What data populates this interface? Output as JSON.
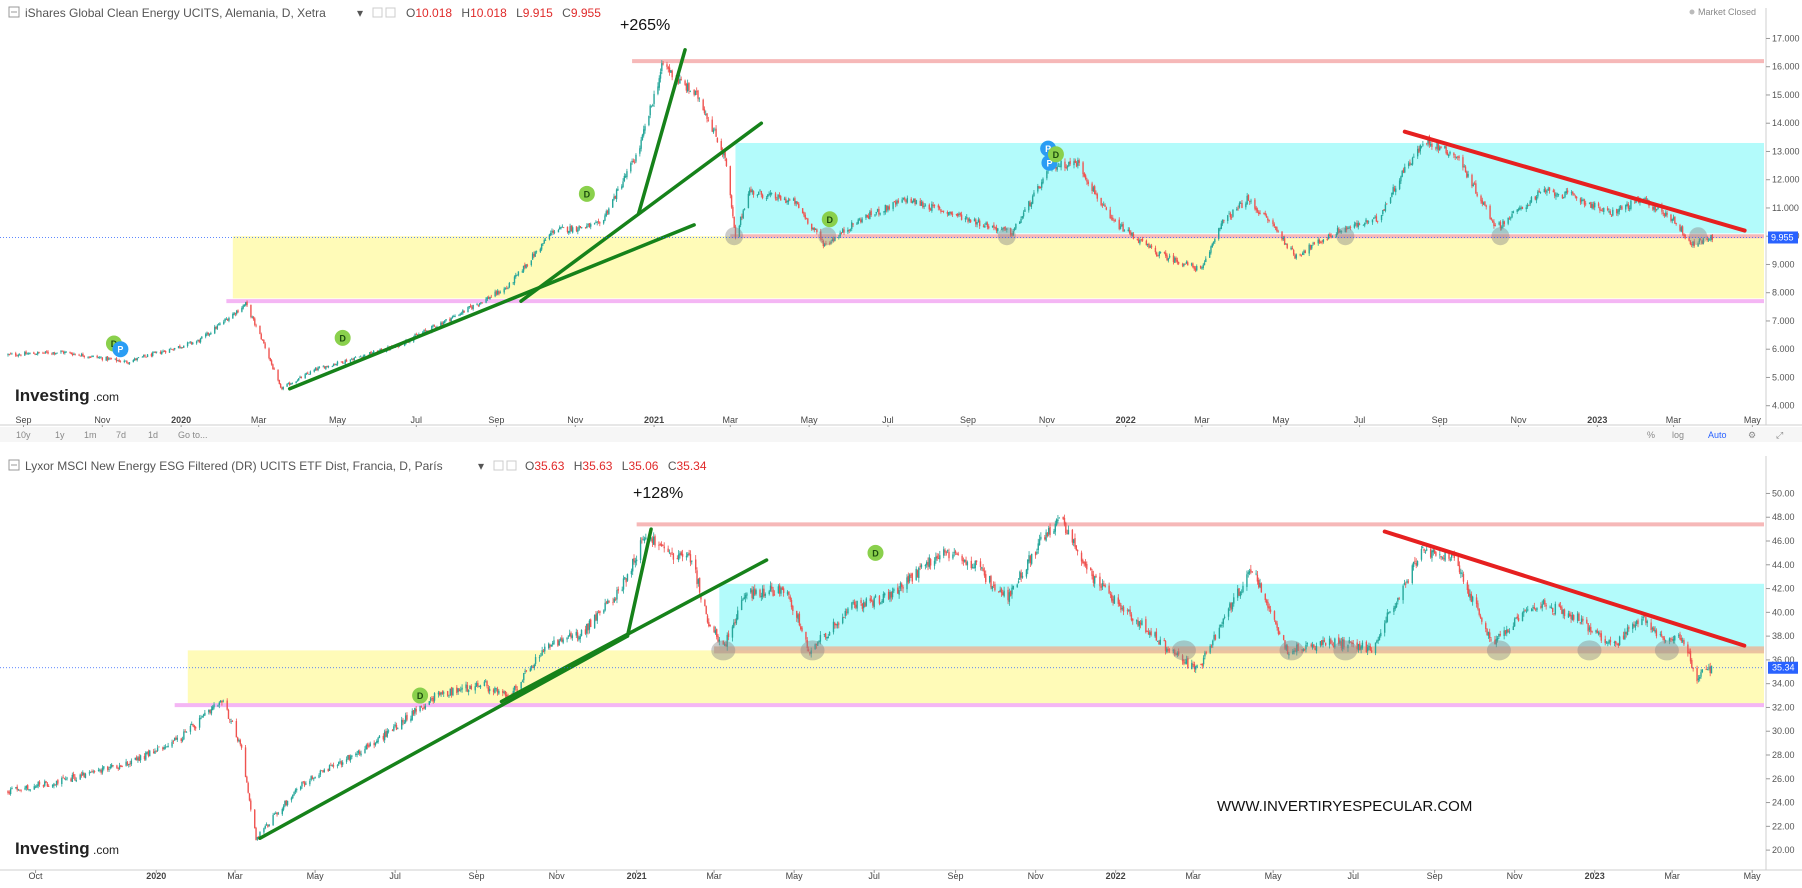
{
  "window": {
    "background": "#ffffff"
  },
  "colors": {
    "up": "#26a69a",
    "down": "#ef5350",
    "trend": "#16821a",
    "resistance": "#e62020",
    "cyan_zone": "#b3fbfb",
    "yellow_zone": "#fffbb8",
    "pink_line": "#f6b8b8",
    "magenta_line": "#f4b6f4",
    "support_band": "#e8b89a",
    "price_tag": "#2962ff",
    "signal_d": "#8ad04c",
    "signal_p": "#2a9df4"
  },
  "top_panel": {
    "title": "iShares Global Clean Energy UCITS, Alemania, D, Xetra",
    "ohlc": {
      "o_label": "O",
      "o": "10.018",
      "h_label": "H",
      "h": "10.018",
      "l_label": "L",
      "l": "9.915",
      "c_label": "C",
      "c": "9.955"
    },
    "market_status": "Market Closed",
    "last_price": "9.955",
    "gain_label": "+265%",
    "logo": "Investing",
    "logo_suffix": ".com",
    "y_ticks": [
      "17.000",
      "16.000",
      "15.000",
      "14.000",
      "13.000",
      "12.000",
      "11.000",
      "10.000",
      "9.000",
      "8.000",
      "7.000",
      "6.000",
      "5.000",
      "4.000"
    ],
    "x_ticks": [
      "Sep",
      "Nov",
      "2020",
      "Mar",
      "May",
      "Jul",
      "Sep",
      "Nov",
      "2021",
      "Mar",
      "May",
      "Jul",
      "Sep",
      "Nov",
      "2022",
      "Mar",
      "May",
      "Jul",
      "Sep",
      "Nov",
      "2023",
      "Mar",
      "May"
    ],
    "toolbar": {
      "ranges": [
        "10y",
        "1y",
        "1m",
        "7d",
        "1d"
      ],
      "goto": "Go to...",
      "percent": "%",
      "log": "log",
      "auto": "Auto"
    }
  },
  "bottom_panel": {
    "title": "Lyxor MSCI New Energy ESG Filtered (DR) UCITS ETF Dist, Francia, D, París",
    "ohlc": {
      "o_label": "O",
      "o": "35.63",
      "h_label": "H",
      "h": "35.63",
      "l_label": "L",
      "l": "35.06",
      "c_label": "C",
      "c": "35.34"
    },
    "last_price": "35.34",
    "gain_label": "+128%",
    "logo": "Investing",
    "logo_suffix": ".com",
    "watermark": "WWW.INVERTIRYESPECULAR.COM",
    "y_ticks": [
      "50.00",
      "48.00",
      "46.00",
      "44.00",
      "42.00",
      "40.00",
      "38.00",
      "36.00",
      "34.00",
      "32.00",
      "30.00",
      "28.00",
      "26.00",
      "24.00",
      "22.00",
      "20.00"
    ],
    "x_ticks": [
      "Oct",
      "2020",
      "Mar",
      "May",
      "Jul",
      "Sep",
      "Nov",
      "2021",
      "Mar",
      "May",
      "Jul",
      "Sep",
      "Nov",
      "2022",
      "Mar",
      "May",
      "Jul",
      "Sep",
      "Nov",
      "2023",
      "Mar",
      "May"
    ]
  },
  "chart_data": [
    {
      "type": "candlestick",
      "title": "iShares Global Clean Energy UCITS, Alemania, D, Xetra",
      "ylim": [
        3.6,
        17.3
      ],
      "x_start": "2019-08-20",
      "x_end": "2023-05-10",
      "price_path": [
        [
          "2019-08-20",
          5.8
        ],
        [
          "2019-10-01",
          5.9
        ],
        [
          "2019-11-20",
          5.55
        ],
        [
          "2020-01-15",
          6.3
        ],
        [
          "2020-02-20",
          7.6
        ],
        [
          "2020-03-05",
          6.2
        ],
        [
          "2020-03-18",
          4.6
        ],
        [
          "2020-04-15",
          5.3
        ],
        [
          "2020-06-15",
          6.1
        ],
        [
          "2020-08-01",
          7.2
        ],
        [
          "2020-09-10",
          8.2
        ],
        [
          "2020-10-15",
          10.2
        ],
        [
          "2020-11-20",
          10.4
        ],
        [
          "2020-12-20",
          13.0
        ],
        [
          "2021-01-08",
          16.1
        ],
        [
          "2021-01-20",
          15.5
        ],
        [
          "2021-02-05",
          14.9
        ],
        [
          "2021-02-25",
          12.8
        ],
        [
          "2021-03-05",
          9.9
        ],
        [
          "2021-03-15",
          11.6
        ],
        [
          "2021-04-20",
          11.2
        ],
        [
          "2021-05-13",
          9.7
        ],
        [
          "2021-06-10",
          10.6
        ],
        [
          "2021-07-15",
          11.3
        ],
        [
          "2021-08-20",
          10.8
        ],
        [
          "2021-10-05",
          10.1
        ],
        [
          "2021-11-05",
          12.5
        ],
        [
          "2021-11-25",
          12.6
        ],
        [
          "2021-12-20",
          10.6
        ],
        [
          "2022-01-25",
          9.4
        ],
        [
          "2022-03-01",
          8.8
        ],
        [
          "2022-03-15",
          10.4
        ],
        [
          "2022-04-05",
          11.3
        ],
        [
          "2022-04-25",
          10.4
        ],
        [
          "2022-05-12",
          9.3
        ],
        [
          "2022-06-15",
          10.2
        ],
        [
          "2022-07-15",
          10.6
        ],
        [
          "2022-08-05",
          12.4
        ],
        [
          "2022-08-22",
          13.4
        ],
        [
          "2022-09-15",
          12.8
        ],
        [
          "2022-10-15",
          10.3
        ],
        [
          "2022-11-20",
          11.6
        ],
        [
          "2022-12-15",
          11.4
        ],
        [
          "2023-01-10",
          10.8
        ],
        [
          "2023-02-05",
          11.3
        ],
        [
          "2023-03-01",
          10.6
        ],
        [
          "2023-03-15",
          9.7
        ],
        [
          "2023-03-31",
          9.955
        ]
      ],
      "overlays": {
        "zones": [
          {
            "color": "cyan",
            "from": "2021-03-05",
            "to": "2023-05-10",
            "y": [
              10.1,
              13.3
            ]
          },
          {
            "color": "yellow",
            "from": "2020-02-10",
            "to": "2023-05-10",
            "y": [
              7.8,
              10.0
            ]
          }
        ],
        "hlines": [
          {
            "color": "pink",
            "from": "2020-12-15",
            "y": 16.2
          },
          {
            "color": "magenta",
            "from": "2020-02-05",
            "y": 7.7
          },
          {
            "color": "pink",
            "from": "2021-03-01",
            "y": 10.0
          }
        ],
        "trendlines": [
          {
            "color": "green",
            "from": [
              "2020-03-25",
              4.6
            ],
            "to": [
              "2021-02-01",
              10.4
            ]
          },
          {
            "color": "green",
            "from": [
              "2020-09-20",
              7.7
            ],
            "to": [
              "2021-03-25",
              14.0
            ]
          },
          {
            "color": "green",
            "from": [
              "2020-12-20",
              10.8
            ],
            "to": [
              "2021-01-25",
              16.6
            ]
          },
          {
            "color": "red",
            "from": [
              "2022-08-05",
              13.7
            ],
            "to": [
              "2023-04-25",
              10.2
            ]
          }
        ],
        "signals": [
          {
            "label": "D",
            "date": "2019-11-10",
            "y": 6.2
          },
          {
            "label": "P",
            "date": "2019-11-15",
            "y": 6.0
          },
          {
            "label": "D",
            "date": "2020-05-05",
            "y": 6.4
          },
          {
            "label": "D",
            "date": "2020-11-10",
            "y": 11.5
          },
          {
            "label": "D",
            "date": "2021-05-17",
            "y": 10.6
          },
          {
            "label": "P",
            "date": "2021-11-02",
            "y": 13.1
          },
          {
            "label": "P",
            "date": "2021-11-03",
            "y": 12.6
          },
          {
            "label": "D",
            "date": "2021-11-08",
            "y": 12.9
          }
        ],
        "support_touches": [
          "2021-03-04",
          "2021-05-15",
          "2021-10-01",
          "2022-06-20",
          "2022-10-18",
          "2023-03-20"
        ]
      }
    },
    {
      "type": "candlestick",
      "title": "Lyxor MSCI New Energy ESG Filtered (DR) UCITS ETF Dist, Francia, D, París",
      "ylim": [
        19.0,
        51.3
      ],
      "x_start": "2019-09-10",
      "x_end": "2023-05-10",
      "price_path": [
        [
          "2019-09-10",
          25.0
        ],
        [
          "2019-10-20",
          25.8
        ],
        [
          "2019-12-15",
          27.5
        ],
        [
          "2020-01-20",
          29.5
        ],
        [
          "2020-02-20",
          32.5
        ],
        [
          "2020-03-05",
          29.0
        ],
        [
          "2020-03-17",
          21.0
        ],
        [
          "2020-04-20",
          25.5
        ],
        [
          "2020-06-15",
          29.0
        ],
        [
          "2020-08-01",
          33.0
        ],
        [
          "2020-09-05",
          34.0
        ],
        [
          "2020-09-25",
          32.8
        ],
        [
          "2020-10-25",
          37.2
        ],
        [
          "2020-11-20",
          38.2
        ],
        [
          "2020-12-20",
          42.0
        ],
        [
          "2021-01-08",
          46.6
        ],
        [
          "2021-01-25",
          45.0
        ],
        [
          "2021-02-12",
          44.5
        ],
        [
          "2021-02-25",
          39.0
        ],
        [
          "2021-03-08",
          37.0
        ],
        [
          "2021-03-25",
          41.5
        ],
        [
          "2021-04-25",
          42.0
        ],
        [
          "2021-05-13",
          36.8
        ],
        [
          "2021-06-15",
          40.5
        ],
        [
          "2021-07-15",
          41.5
        ],
        [
          "2021-08-20",
          45.0
        ],
        [
          "2021-09-15",
          44.0
        ],
        [
          "2021-10-10",
          41.2
        ],
        [
          "2021-10-30",
          45.0
        ],
        [
          "2021-11-20",
          48.0
        ],
        [
          "2021-12-15",
          42.8
        ],
        [
          "2022-01-20",
          39.0
        ],
        [
          "2022-02-20",
          36.0
        ],
        [
          "2022-03-05",
          35.2
        ],
        [
          "2022-03-25",
          39.5
        ],
        [
          "2022-04-15",
          43.8
        ],
        [
          "2022-05-12",
          36.8
        ],
        [
          "2022-06-15",
          37.5
        ],
        [
          "2022-07-15",
          37.0
        ],
        [
          "2022-08-05",
          41.5
        ],
        [
          "2022-08-22",
          45.2
        ],
        [
          "2022-09-15",
          44.5
        ],
        [
          "2022-10-15",
          37.5
        ],
        [
          "2022-11-20",
          40.8
        ],
        [
          "2022-12-20",
          39.5
        ],
        [
          "2023-01-15",
          37.0
        ],
        [
          "2023-02-05",
          39.6
        ],
        [
          "2023-02-25",
          37.5
        ],
        [
          "2023-03-08",
          38.0
        ],
        [
          "2023-03-20",
          34.5
        ],
        [
          "2023-03-31",
          35.34
        ]
      ],
      "overlays": {
        "zones": [
          {
            "color": "cyan",
            "from": "2021-03-05",
            "to": "2023-05-10",
            "y": [
              36.7,
              42.4
            ]
          },
          {
            "color": "yellow",
            "from": "2020-01-25",
            "to": "2023-05-10",
            "y": [
              32.2,
              36.8
            ]
          }
        ],
        "hlines": [
          {
            "color": "pink",
            "from": "2021-01-01",
            "y": 47.4
          },
          {
            "color": "magenta",
            "from": "2020-01-15",
            "y": 32.2
          },
          {
            "color": "band",
            "from": "2021-03-01",
            "y": 36.8
          }
        ],
        "trendlines": [
          {
            "color": "green",
            "from": [
              "2020-03-20",
              21.0
            ],
            "to": [
              "2020-12-25",
              38.0
            ]
          },
          {
            "color": "green",
            "from": [
              "2020-12-25",
              38.0
            ],
            "to": [
              "2021-01-12",
              47.0
            ]
          },
          {
            "color": "green",
            "from": [
              "2020-09-20",
              32.5
            ],
            "to": [
              "2021-04-10",
              44.4
            ]
          },
          {
            "color": "red",
            "from": [
              "2022-07-25",
              46.8
            ],
            "to": [
              "2023-04-25",
              37.2
            ]
          }
        ],
        "signals": [
          {
            "label": "D",
            "date": "2020-07-20",
            "y": 33.0
          },
          {
            "label": "D",
            "date": "2021-07-02",
            "y": 45.0
          }
        ],
        "support_touches": [
          "2021-03-08",
          "2021-05-15",
          "2022-02-22",
          "2022-05-15",
          "2022-06-25",
          "2022-10-20",
          "2022-12-28",
          "2023-02-25"
        ]
      }
    }
  ]
}
